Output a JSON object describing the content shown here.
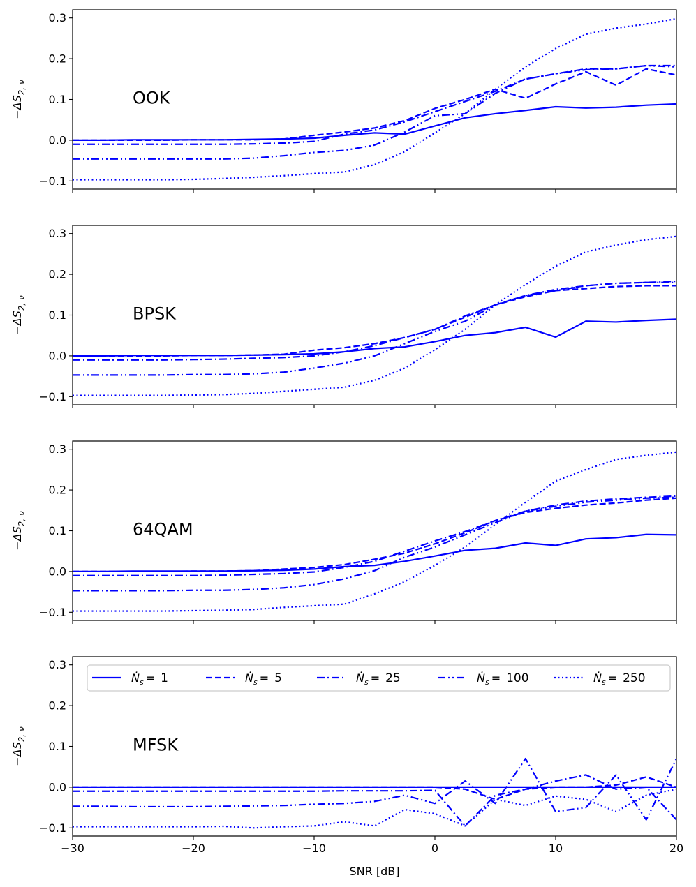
{
  "chart_data": [
    {
      "type": "line",
      "panel_label": "OOK",
      "xlabel": "",
      "ylabel": "−ΔS2,ν",
      "xlim": [
        -30,
        20
      ],
      "ylim": [
        -0.12,
        0.32
      ],
      "yticks": [
        -0.1,
        0.0,
        0.1,
        0.2,
        0.3
      ],
      "ytick_labels": [
        "−0.1",
        "0.0",
        "0.1",
        "0.2",
        "0.3"
      ],
      "x": [
        -30,
        -27.5,
        -25,
        -22.5,
        -20,
        -17.5,
        -15,
        -12.5,
        -10,
        -7.5,
        -5,
        -2.5,
        0,
        2.5,
        5,
        7.5,
        10,
        12.5,
        15,
        17.5,
        20
      ],
      "series": [
        {
          "name": "Ns=1",
          "style": "solid",
          "values": [
            0.0,
            0.0,
            0.001,
            0.001,
            0.001,
            0.001,
            0.002,
            0.003,
            0.005,
            0.012,
            0.018,
            0.015,
            0.035,
            0.055,
            0.065,
            0.073,
            0.082,
            0.079,
            0.081,
            0.086,
            0.089
          ]
        },
        {
          "name": "Ns=5",
          "style": "dashed",
          "values": [
            0.0,
            0.0,
            0.0,
            0.0,
            0.001,
            0.001,
            0.001,
            0.003,
            0.012,
            0.02,
            0.03,
            0.048,
            0.078,
            0.1,
            0.125,
            0.103,
            0.138,
            0.168,
            0.135,
            0.175,
            0.16
          ]
        },
        {
          "name": "Ns=25",
          "style": "dashdot",
          "values": [
            -0.01,
            -0.01,
            -0.01,
            -0.01,
            -0.01,
            -0.01,
            -0.009,
            -0.007,
            -0.003,
            0.015,
            0.025,
            0.045,
            0.07,
            0.095,
            0.12,
            0.15,
            0.163,
            0.175,
            0.175,
            0.183,
            0.183
          ]
        },
        {
          "name": "Ns=100",
          "style": "dashdotdot",
          "values": [
            -0.046,
            -0.046,
            -0.046,
            -0.046,
            -0.046,
            -0.046,
            -0.044,
            -0.038,
            -0.03,
            -0.025,
            -0.012,
            0.02,
            0.06,
            0.065,
            0.115,
            0.15,
            0.163,
            0.173,
            0.175,
            0.183,
            0.18
          ]
        },
        {
          "name": "Ns=250",
          "style": "dotted",
          "values": [
            -0.097,
            -0.097,
            -0.097,
            -0.097,
            -0.096,
            -0.094,
            -0.091,
            -0.087,
            -0.082,
            -0.078,
            -0.06,
            -0.028,
            0.018,
            0.065,
            0.125,
            0.18,
            0.225,
            0.26,
            0.275,
            0.285,
            0.298
          ]
        }
      ]
    },
    {
      "type": "line",
      "panel_label": "BPSK",
      "xlabel": "",
      "ylabel": "−ΔS2,ν",
      "xlim": [
        -30,
        20
      ],
      "ylim": [
        -0.12,
        0.32
      ],
      "yticks": [
        -0.1,
        0.0,
        0.1,
        0.2,
        0.3
      ],
      "ytick_labels": [
        "−0.1",
        "0.0",
        "0.1",
        "0.2",
        "0.3"
      ],
      "x": [
        -30,
        -27.5,
        -25,
        -22.5,
        -20,
        -17.5,
        -15,
        -12.5,
        -10,
        -7.5,
        -5,
        -2.5,
        0,
        2.5,
        5,
        7.5,
        10,
        12.5,
        15,
        17.5,
        20
      ],
      "series": [
        {
          "name": "Ns=1",
          "style": "solid",
          "values": [
            0.0,
            0.0,
            0.001,
            0.001,
            0.001,
            0.001,
            0.002,
            0.003,
            0.005,
            0.01,
            0.018,
            0.022,
            0.035,
            0.05,
            0.057,
            0.07,
            0.046,
            0.085,
            0.083,
            0.087,
            0.09
          ]
        },
        {
          "name": "Ns=5",
          "style": "dashed",
          "values": [
            0.0,
            0.0,
            0.0,
            0.0,
            0.001,
            0.001,
            0.002,
            0.004,
            0.014,
            0.02,
            0.03,
            0.045,
            0.065,
            0.095,
            0.125,
            0.145,
            0.16,
            0.165,
            0.17,
            0.172,
            0.172
          ]
        },
        {
          "name": "Ns=25",
          "style": "dashdot",
          "values": [
            -0.01,
            -0.01,
            -0.01,
            -0.01,
            -0.009,
            -0.008,
            -0.006,
            -0.004,
            0.0,
            0.01,
            0.025,
            0.045,
            0.065,
            0.098,
            0.125,
            0.148,
            0.163,
            0.172,
            0.178,
            0.18,
            0.183
          ]
        },
        {
          "name": "Ns=100",
          "style": "dashdotdot",
          "values": [
            -0.047,
            -0.047,
            -0.047,
            -0.047,
            -0.046,
            -0.046,
            -0.044,
            -0.04,
            -0.03,
            -0.018,
            0.0,
            0.03,
            0.06,
            0.085,
            0.125,
            0.148,
            0.16,
            0.172,
            0.178,
            0.18,
            0.18
          ]
        },
        {
          "name": "Ns=250",
          "style": "dotted",
          "values": [
            -0.097,
            -0.097,
            -0.097,
            -0.097,
            -0.096,
            -0.095,
            -0.092,
            -0.087,
            -0.082,
            -0.077,
            -0.06,
            -0.03,
            0.015,
            0.065,
            0.125,
            0.175,
            0.22,
            0.255,
            0.272,
            0.285,
            0.293
          ]
        }
      ]
    },
    {
      "type": "line",
      "panel_label": "64QAM",
      "xlabel": "",
      "ylabel": "−ΔS2,ν",
      "xlim": [
        -30,
        20
      ],
      "ylim": [
        -0.12,
        0.32
      ],
      "yticks": [
        -0.1,
        0.0,
        0.1,
        0.2,
        0.3
      ],
      "ytick_labels": [
        "−0.1",
        "0.0",
        "0.1",
        "0.2",
        "0.3"
      ],
      "x": [
        -30,
        -27.5,
        -25,
        -22.5,
        -20,
        -17.5,
        -15,
        -12.5,
        -10,
        -7.5,
        -5,
        -2.5,
        0,
        2.5,
        5,
        7.5,
        10,
        12.5,
        15,
        17.5,
        20
      ],
      "series": [
        {
          "name": "Ns=1",
          "style": "solid",
          "values": [
            0.0,
            0.0,
            0.001,
            0.001,
            0.001,
            0.001,
            0.002,
            0.003,
            0.006,
            0.012,
            0.015,
            0.025,
            0.038,
            0.052,
            0.057,
            0.07,
            0.064,
            0.08,
            0.083,
            0.091,
            0.09
          ]
        },
        {
          "name": "Ns=5",
          "style": "dashed",
          "values": [
            0.0,
            0.0,
            0.0,
            0.0,
            0.001,
            0.001,
            0.002,
            0.006,
            0.01,
            0.017,
            0.03,
            0.045,
            0.068,
            0.095,
            0.125,
            0.145,
            0.155,
            0.163,
            0.168,
            0.175,
            0.18
          ]
        },
        {
          "name": "Ns=25",
          "style": "dashdot",
          "values": [
            -0.01,
            -0.01,
            -0.01,
            -0.01,
            -0.01,
            -0.009,
            -0.007,
            -0.005,
            -0.001,
            0.01,
            0.025,
            0.05,
            0.075,
            0.098,
            0.125,
            0.148,
            0.163,
            0.173,
            0.178,
            0.182,
            0.185
          ]
        },
        {
          "name": "Ns=100",
          "style": "dashdotdot",
          "values": [
            -0.047,
            -0.047,
            -0.047,
            -0.047,
            -0.046,
            -0.046,
            -0.044,
            -0.04,
            -0.032,
            -0.018,
            0.002,
            0.035,
            0.06,
            0.09,
            0.12,
            0.148,
            0.16,
            0.17,
            0.175,
            0.18,
            0.182
          ]
        },
        {
          "name": "Ns=250",
          "style": "dotted",
          "values": [
            -0.097,
            -0.097,
            -0.097,
            -0.097,
            -0.096,
            -0.095,
            -0.093,
            -0.088,
            -0.084,
            -0.08,
            -0.055,
            -0.025,
            0.015,
            0.06,
            0.115,
            0.17,
            0.222,
            0.25,
            0.275,
            0.285,
            0.293
          ]
        }
      ]
    },
    {
      "type": "line",
      "panel_label": "MFSK",
      "xlabel": "SNR [dB]",
      "ylabel": "−ΔS2,ν",
      "xlim": [
        -30,
        20
      ],
      "ylim": [
        -0.12,
        0.32
      ],
      "xticks": [
        -30,
        -20,
        -10,
        0,
        10,
        20
      ],
      "xtick_labels": [
        "−30",
        "−20",
        "−10",
        "0",
        "10",
        "20"
      ],
      "yticks": [
        -0.1,
        0.0,
        0.1,
        0.2,
        0.3
      ],
      "ytick_labels": [
        "−0.1",
        "0.0",
        "0.1",
        "0.2",
        "0.3"
      ],
      "x": [
        -30,
        -27.5,
        -25,
        -22.5,
        -20,
        -17.5,
        -15,
        -12.5,
        -10,
        -7.5,
        -5,
        -2.5,
        0,
        2.5,
        5,
        7.5,
        10,
        12.5,
        15,
        17.5,
        20
      ],
      "series": [
        {
          "name": "Ns=1",
          "style": "solid",
          "values": [
            0.0,
            0.0,
            0.0,
            0.0,
            0.0,
            0.0,
            0.0,
            0.0,
            0.0,
            0.0,
            0.0,
            0.0,
            0.0,
            0.0,
            0.0,
            0.0,
            0.0,
            0.0,
            0.0,
            0.0,
            0.0
          ]
        },
        {
          "name": "Ns=5",
          "style": "dashed",
          "values": [
            0.0,
            0.0,
            0.0,
            0.0,
            0.0,
            0.0,
            0.0,
            0.0,
            0.0,
            0.0,
            0.0,
            0.0,
            0.0,
            -0.005,
            -0.03,
            -0.005,
            0.0,
            0.0,
            0.005,
            0.025,
            0.0
          ]
        },
        {
          "name": "Ns=25",
          "style": "dashdot",
          "values": [
            -0.01,
            -0.01,
            -0.01,
            -0.01,
            -0.01,
            -0.01,
            -0.01,
            -0.01,
            -0.01,
            -0.009,
            -0.009,
            -0.009,
            -0.008,
            -0.095,
            -0.02,
            -0.005,
            0.015,
            0.03,
            -0.005,
            0.0,
            -0.08
          ]
        },
        {
          "name": "Ns=100",
          "style": "dashdotdot",
          "values": [
            -0.047,
            -0.047,
            -0.048,
            -0.048,
            -0.048,
            -0.047,
            -0.046,
            -0.045,
            -0.042,
            -0.04,
            -0.035,
            -0.02,
            -0.04,
            0.015,
            -0.04,
            0.07,
            -0.06,
            -0.05,
            0.03,
            -0.08,
            0.07
          ]
        },
        {
          "name": "Ns=250",
          "style": "dotted",
          "values": [
            -0.097,
            -0.097,
            -0.097,
            -0.097,
            -0.097,
            -0.096,
            -0.1,
            -0.097,
            -0.095,
            -0.085,
            -0.095,
            -0.055,
            -0.065,
            -0.095,
            -0.03,
            -0.045,
            -0.022,
            -0.03,
            -0.06,
            -0.02,
            -0.005
          ]
        }
      ],
      "legend": {
        "location": "top",
        "entries": [
          {
            "symbol": "Ṅ",
            "sub": "s",
            "eq": "=",
            "value": "1",
            "style": "solid"
          },
          {
            "symbol": "Ṅ",
            "sub": "s",
            "eq": "=",
            "value": "5",
            "style": "dashed"
          },
          {
            "symbol": "Ṅ",
            "sub": "s",
            "eq": "=",
            "value": "25",
            "style": "dashdot"
          },
          {
            "symbol": "Ṅ",
            "sub": "s",
            "eq": "=",
            "value": "100",
            "style": "dashdotdot"
          },
          {
            "symbol": "Ṅ",
            "sub": "s",
            "eq": "=",
            "value": "250",
            "style": "dotted"
          }
        ]
      }
    }
  ],
  "colors": {
    "line": "#0000ff",
    "axes": "#000000",
    "background": "#ffffff"
  }
}
